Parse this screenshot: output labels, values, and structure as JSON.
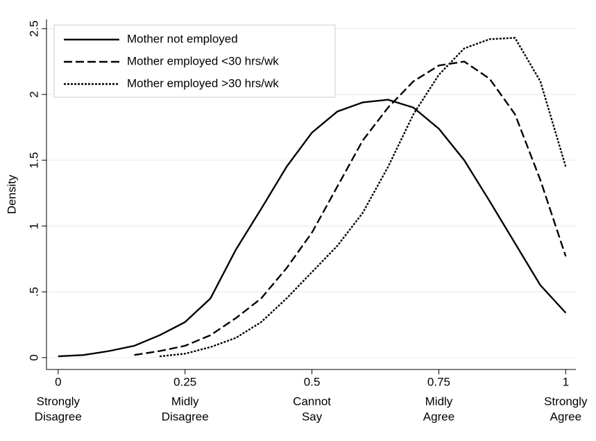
{
  "chart_data": {
    "type": "line",
    "ylabel": "Density",
    "x": [
      0,
      0.05,
      0.1,
      0.15,
      0.2,
      0.25,
      0.3,
      0.35,
      0.4,
      0.45,
      0.5,
      0.55,
      0.6,
      0.65,
      0.7,
      0.75,
      0.8,
      0.85,
      0.9,
      0.95,
      1
    ],
    "series": [
      {
        "name": "Mother not employed",
        "color": "#000000",
        "style": "solid",
        "values": [
          0.01,
          0.02,
          0.05,
          0.09,
          0.17,
          0.27,
          0.45,
          0.82,
          1.13,
          1.45,
          1.71,
          1.87,
          1.94,
          1.96,
          1.9,
          1.74,
          1.5,
          1.19,
          0.87,
          0.55,
          0.34
        ]
      },
      {
        "name": "Mother employed <30 hrs/wk",
        "color": "#000000",
        "style": "dashed",
        "values": [
          null,
          null,
          null,
          0.02,
          0.05,
          0.09,
          0.17,
          0.3,
          0.45,
          0.68,
          0.95,
          1.3,
          1.65,
          1.9,
          2.1,
          2.22,
          2.25,
          2.12,
          1.85,
          1.35,
          0.77
        ]
      },
      {
        "name": "Mother employed >30 hrs/wk",
        "color": "#000000",
        "style": "dotted",
        "values": [
          null,
          null,
          null,
          null,
          0.01,
          0.03,
          0.08,
          0.15,
          0.27,
          0.45,
          0.65,
          0.85,
          1.1,
          1.45,
          1.85,
          2.15,
          2.35,
          2.42,
          2.43,
          2.1,
          1.45
        ]
      }
    ],
    "xlim": [
      -0.023,
      1.02
    ],
    "ylim": [
      -0.09,
      2.57
    ],
    "xticks": [
      0,
      0.25,
      0.5,
      0.75,
      1
    ],
    "xtick_sublabels": [
      [
        "Strongly",
        "Disagree"
      ],
      [
        "Midly",
        "Disagree"
      ],
      [
        "Cannot",
        "Say"
      ],
      [
        "Midly",
        "Agree"
      ],
      [
        "Strongly",
        "Agree"
      ]
    ],
    "yticks": [
      0,
      {
        "value": 0.5,
        "label": ".5"
      },
      1,
      1.5,
      2,
      2.5
    ],
    "grid": true,
    "legend": "top left"
  }
}
